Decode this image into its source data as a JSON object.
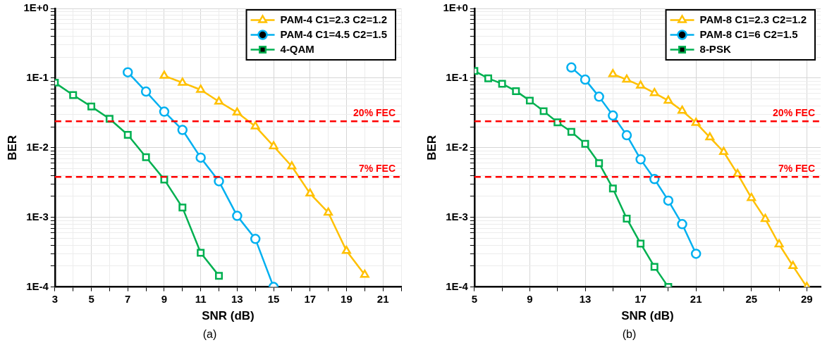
{
  "chart_data": [
    {
      "type": "line",
      "xlabel": "SNR (dB)",
      "ylabel": "BER",
      "annotations": [
        "(a)"
      ],
      "log": "y",
      "grid": true,
      "legend": "top right",
      "xlim": [
        3,
        22
      ],
      "xticks": [
        3,
        {
          "value": 4,
          "label": null
        },
        5,
        {
          "value": 6,
          "label": null
        },
        7,
        {
          "value": 8,
          "label": null
        },
        9,
        {
          "value": 10,
          "label": null
        },
        11,
        {
          "value": 12,
          "label": null
        },
        13,
        {
          "value": 14,
          "label": null
        },
        15,
        {
          "value": 16,
          "label": null
        },
        17,
        {
          "value": 18,
          "label": null
        },
        19,
        {
          "value": 20,
          "label": null
        },
        21,
        {
          "value": 22,
          "label": null
        }
      ],
      "ylim": [
        0.0001,
        1
      ],
      "yticks": [
        {
          "value": 0.0001,
          "label": "1E-4"
        },
        {
          "value": 0.0002,
          "label": null
        },
        {
          "value": 0.0003,
          "label": null
        },
        {
          "value": 0.0004,
          "label": null
        },
        {
          "value": 0.0005,
          "label": null
        },
        {
          "value": 0.0006,
          "label": null
        },
        {
          "value": 0.0007,
          "label": null
        },
        {
          "value": 0.0008,
          "label": null
        },
        {
          "value": 0.0009,
          "label": null
        },
        {
          "value": 0.001,
          "label": "1E-3"
        },
        {
          "value": 0.002,
          "label": null
        },
        {
          "value": 0.003,
          "label": null
        },
        {
          "value": 0.004,
          "label": null
        },
        {
          "value": 0.005,
          "label": null
        },
        {
          "value": 0.006,
          "label": null
        },
        {
          "value": 0.007,
          "label": null
        },
        {
          "value": 0.008,
          "label": null
        },
        {
          "value": 0.009,
          "label": null
        },
        {
          "value": 0.01,
          "label": "1E-2"
        },
        {
          "value": 0.02,
          "label": null
        },
        {
          "value": 0.03,
          "label": null
        },
        {
          "value": 0.04,
          "label": null
        },
        {
          "value": 0.05,
          "label": null
        },
        {
          "value": 0.06,
          "label": null
        },
        {
          "value": 0.07,
          "label": null
        },
        {
          "value": 0.08,
          "label": null
        },
        {
          "value": 0.09,
          "label": null
        },
        {
          "value": 0.1,
          "label": "1E-1"
        },
        {
          "value": 0.2,
          "label": null
        },
        {
          "value": 0.3,
          "label": null
        },
        {
          "value": 0.4,
          "label": null
        },
        {
          "value": 0.5,
          "label": null
        },
        {
          "value": 0.6,
          "label": null
        },
        {
          "value": 0.7,
          "label": null
        },
        {
          "value": 0.8,
          "label": null
        },
        {
          "value": 0.9,
          "label": null
        },
        {
          "value": 1,
          "label": "1E+0"
        }
      ],
      "series": [
        {
          "name": "PAM-4 C1=2.3 C2=1.2",
          "color": "#ffc000",
          "marker": "triangle",
          "x": [
            9,
            10,
            11,
            12,
            13,
            14,
            15,
            16,
            17,
            18,
            19,
            20
          ],
          "values": [
            0.108,
            0.086,
            0.068,
            0.046,
            0.032,
            0.0203,
            0.0105,
            0.0054,
            0.0022,
            0.00117,
            0.00033,
            0.00015
          ]
        },
        {
          "name": "PAM-4 C1=4.5 C2=1.5",
          "color": "#00b0f0",
          "marker": "circle",
          "x": [
            7,
            8,
            9,
            10,
            11,
            12,
            13,
            14,
            15
          ],
          "values": [
            0.121,
            0.064,
            0.033,
            0.018,
            0.0072,
            0.0033,
            0.00105,
            0.00049,
            0.0001
          ]
        },
        {
          "name": "4-QAM",
          "color": "#00b050",
          "marker": "square",
          "x": [
            3,
            4,
            5,
            6,
            7,
            8,
            9,
            10,
            11,
            12
          ],
          "values": [
            0.086,
            0.057,
            0.039,
            0.026,
            0.0153,
            0.0073,
            0.0035,
            0.00138,
            0.00031,
            0.000145
          ]
        }
      ],
      "ref_lines": [
        {
          "axis": "y",
          "value": 0.024,
          "label": "20% FEC",
          "color": "#ff0000",
          "line_style": "dashed"
        },
        {
          "axis": "y",
          "value": 0.0038,
          "label": "7% FEC",
          "color": "#ff0000",
          "line_style": "dashed"
        }
      ]
    },
    {
      "type": "line",
      "xlabel": "SNR (dB)",
      "ylabel": "BER",
      "annotations": [
        "(b)"
      ],
      "log": "y",
      "grid": true,
      "legend": "top right",
      "xlim": [
        5,
        30
      ],
      "xticks": [
        5,
        {
          "value": 7,
          "label": null
        },
        9,
        {
          "value": 11,
          "label": null
        },
        13,
        {
          "value": 15,
          "label": null
        },
        17,
        {
          "value": 19,
          "label": null
        },
        21,
        {
          "value": 23,
          "label": null
        },
        25,
        {
          "value": 27,
          "label": null
        },
        29
      ],
      "ylim": [
        0.0001,
        1
      ],
      "yticks": [
        {
          "value": 0.0001,
          "label": "1E-4"
        },
        {
          "value": 0.0002,
          "label": null
        },
        {
          "value": 0.0003,
          "label": null
        },
        {
          "value": 0.0004,
          "label": null
        },
        {
          "value": 0.0005,
          "label": null
        },
        {
          "value": 0.0006,
          "label": null
        },
        {
          "value": 0.0007,
          "label": null
        },
        {
          "value": 0.0008,
          "label": null
        },
        {
          "value": 0.0009,
          "label": null
        },
        {
          "value": 0.001,
          "label": "1E-3"
        },
        {
          "value": 0.002,
          "label": null
        },
        {
          "value": 0.003,
          "label": null
        },
        {
          "value": 0.004,
          "label": null
        },
        {
          "value": 0.005,
          "label": null
        },
        {
          "value": 0.006,
          "label": null
        },
        {
          "value": 0.007,
          "label": null
        },
        {
          "value": 0.008,
          "label": null
        },
        {
          "value": 0.009,
          "label": null
        },
        {
          "value": 0.01,
          "label": "1E-2"
        },
        {
          "value": 0.02,
          "label": null
        },
        {
          "value": 0.03,
          "label": null
        },
        {
          "value": 0.04,
          "label": null
        },
        {
          "value": 0.05,
          "label": null
        },
        {
          "value": 0.06,
          "label": null
        },
        {
          "value": 0.07,
          "label": null
        },
        {
          "value": 0.08,
          "label": null
        },
        {
          "value": 0.09,
          "label": null
        },
        {
          "value": 0.1,
          "label": "1E-1"
        },
        {
          "value": 0.2,
          "label": null
        },
        {
          "value": 0.3,
          "label": null
        },
        {
          "value": 0.4,
          "label": null
        },
        {
          "value": 0.5,
          "label": null
        },
        {
          "value": 0.6,
          "label": null
        },
        {
          "value": 0.7,
          "label": null
        },
        {
          "value": 0.8,
          "label": null
        },
        {
          "value": 0.9,
          "label": null
        },
        {
          "value": 1,
          "label": "1E+0"
        }
      ],
      "series": [
        {
          "name": "PAM-8 C1=2.3 C2=1.2",
          "color": "#ffc000",
          "marker": "triangle",
          "x": [
            15,
            16,
            17,
            18,
            19,
            20,
            21,
            22,
            23,
            24,
            25,
            26,
            27,
            28,
            29
          ],
          "values": [
            0.114,
            0.095,
            0.078,
            0.061,
            0.0475,
            0.034,
            0.0228,
            0.0141,
            0.0087,
            0.0042,
            0.0019,
            0.00095,
            0.00041,
            0.0002,
            0.0001
          ]
        },
        {
          "name": "PAM-8 C1=6 C2=1.5",
          "color": "#00b0f0",
          "marker": "circle",
          "x": [
            12,
            13,
            14,
            15,
            16,
            17,
            18,
            19,
            20,
            21
          ],
          "values": [
            0.142,
            0.095,
            0.054,
            0.029,
            0.0151,
            0.0068,
            0.00355,
            0.00174,
            0.0008,
            0.0003
          ]
        },
        {
          "name": "8-PSK",
          "color": "#00b050",
          "marker": "square",
          "x": [
            5,
            6,
            7,
            8,
            9,
            10,
            11,
            12,
            13,
            14,
            15,
            16,
            17,
            18,
            19
          ],
          "values": [
            0.127,
            0.099,
            0.083,
            0.065,
            0.0475,
            0.0335,
            0.0231,
            0.0169,
            0.0114,
            0.006,
            0.0026,
            0.00096,
            0.00042,
            0.000195,
            0.0001
          ]
        }
      ],
      "ref_lines": [
        {
          "axis": "y",
          "value": 0.024,
          "label": "20% FEC",
          "color": "#ff0000",
          "line_style": "dashed"
        },
        {
          "axis": "y",
          "value": 0.0038,
          "label": "7% FEC",
          "color": "#ff0000",
          "line_style": "dashed"
        }
      ]
    }
  ]
}
